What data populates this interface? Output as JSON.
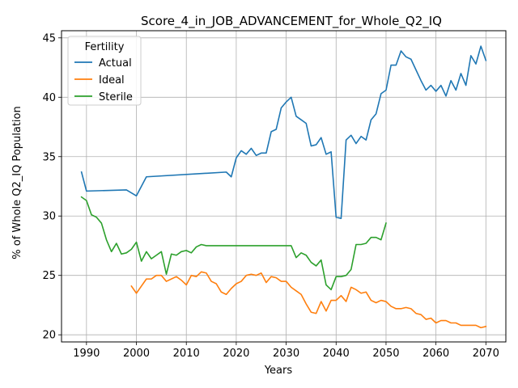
{
  "chart_data": {
    "type": "line",
    "title": "Score_4_in_JOB_ADVANCEMENT_for_Whole_Q2_IQ",
    "xlabel": "Years",
    "ylabel": "% of Whole Q2_IQ Population",
    "xlim": [
      1985,
      2074
    ],
    "ylim": [
      19.4,
      45.6
    ],
    "xticks": [
      1990,
      2000,
      2010,
      2020,
      2030,
      2040,
      2050,
      2060,
      2070
    ],
    "yticks": [
      20,
      25,
      30,
      35,
      40,
      45
    ],
    "grid": true,
    "legend": {
      "title": "Fertility",
      "position": "top-left"
    },
    "series": [
      {
        "name": "Actual",
        "color": "#1f77b4",
        "x": [
          1989,
          1990,
          1998,
          2000,
          2002,
          2018,
          2019,
          2020,
          2021,
          2022,
          2023,
          2024,
          2025,
          2026,
          2027,
          2028,
          2029,
          2030,
          2031,
          2032,
          2033,
          2034,
          2035,
          2036,
          2037,
          2038,
          2039,
          2040,
          2041,
          2042,
          2043,
          2044,
          2045,
          2046,
          2047,
          2048,
          2049,
          2050,
          2051,
          2052,
          2053,
          2054,
          2055,
          2056,
          2057,
          2058,
          2059,
          2060,
          2061,
          2062,
          2063,
          2064,
          2065,
          2066,
          2067,
          2068,
          2069,
          2070
        ],
        "y": [
          33.7,
          32.1,
          32.2,
          31.7,
          33.3,
          33.7,
          33.3,
          34.9,
          35.5,
          35.2,
          35.7,
          35.1,
          35.3,
          35.3,
          37.1,
          37.3,
          39.1,
          39.6,
          40.0,
          38.4,
          38.1,
          37.8,
          35.9,
          36.0,
          36.6,
          35.2,
          35.4,
          29.9,
          29.8,
          36.4,
          36.8,
          36.1,
          36.7,
          36.4,
          38.1,
          38.6,
          40.3,
          40.6,
          42.7,
          42.7,
          43.9,
          43.4,
          43.2,
          42.3,
          41.4,
          40.6,
          41.0,
          40.5,
          41.0,
          40.1,
          41.4,
          40.6,
          42.0,
          41.0,
          43.5,
          42.8,
          44.3,
          43.1
        ]
      },
      {
        "name": "Ideal",
        "color": "#ff7f0e",
        "x": [
          1999,
          2000,
          2001,
          2002,
          2003,
          2004,
          2005,
          2006,
          2007,
          2008,
          2009,
          2010,
          2011,
          2012,
          2013,
          2014,
          2015,
          2016,
          2017,
          2018,
          2019,
          2020,
          2021,
          2022,
          2023,
          2024,
          2025,
          2026,
          2027,
          2028,
          2029,
          2030,
          2031,
          2032,
          2033,
          2034,
          2035,
          2036,
          2037,
          2038,
          2039,
          2040,
          2041,
          2042,
          2043,
          2044,
          2045,
          2046,
          2047,
          2048,
          2049,
          2050,
          2051,
          2052,
          2053,
          2054,
          2055,
          2056,
          2057,
          2058,
          2059,
          2060,
          2061,
          2062,
          2063,
          2064,
          2065,
          2066,
          2067,
          2068,
          2069,
          2070
        ],
        "y": [
          24.1,
          23.5,
          24.1,
          24.7,
          24.7,
          25.0,
          25.0,
          24.5,
          24.7,
          24.9,
          24.6,
          24.2,
          25.0,
          24.9,
          25.3,
          25.2,
          24.5,
          24.3,
          23.6,
          23.4,
          23.9,
          24.3,
          24.5,
          25.0,
          25.1,
          25.0,
          25.2,
          24.4,
          24.9,
          24.8,
          24.5,
          24.5,
          24.0,
          23.7,
          23.4,
          22.6,
          21.9,
          21.8,
          22.8,
          22.0,
          22.9,
          22.9,
          23.3,
          22.8,
          24.0,
          23.8,
          23.5,
          23.6,
          22.9,
          22.7,
          22.9,
          22.8,
          22.4,
          22.2,
          22.2,
          22.3,
          22.2,
          21.8,
          21.7,
          21.3,
          21.4,
          21.0,
          21.2,
          21.2,
          21.0,
          21.0,
          20.8,
          20.8,
          20.8,
          20.8,
          20.6,
          20.7
        ]
      },
      {
        "name": "Sterile",
        "color": "#2ca02c",
        "x": [
          1989,
          1990,
          1991,
          1992,
          1993,
          1994,
          1995,
          1996,
          1997,
          1998,
          1999,
          2000,
          2001,
          2002,
          2003,
          2004,
          2005,
          2006,
          2007,
          2008,
          2009,
          2010,
          2011,
          2012,
          2013,
          2014,
          2031,
          2032,
          2033,
          2034,
          2035,
          2036,
          2037,
          2038,
          2039,
          2040,
          2041,
          2042,
          2043,
          2044,
          2045,
          2046,
          2047,
          2048,
          2049,
          2050
        ],
        "y": [
          31.6,
          31.3,
          30.1,
          29.9,
          29.4,
          28.0,
          27.0,
          27.7,
          26.8,
          26.9,
          27.2,
          27.8,
          26.2,
          27.0,
          26.4,
          26.7,
          27.0,
          25.1,
          26.8,
          26.7,
          27.0,
          27.1,
          26.9,
          27.4,
          27.6,
          27.5,
          27.5,
          26.5,
          26.9,
          26.7,
          26.1,
          25.8,
          26.3,
          24.2,
          23.8,
          24.9,
          24.9,
          25.0,
          25.5,
          27.6,
          27.6,
          27.7,
          28.2,
          28.2,
          28.0,
          29.4
        ]
      }
    ]
  }
}
